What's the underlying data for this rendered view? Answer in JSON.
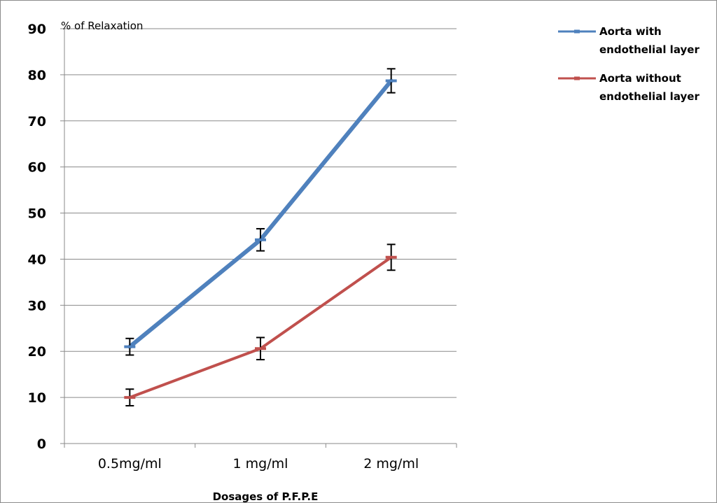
{
  "chart_data": {
    "type": "line",
    "title": "",
    "ylabel": "% of Relaxation",
    "xlabel": "Dosages of P.F.P.E",
    "categories": [
      "0.5mg/ml",
      "1 mg/ml",
      "2 mg/ml"
    ],
    "ylim": [
      0,
      90
    ],
    "yticks": [
      0,
      10,
      20,
      30,
      40,
      50,
      60,
      70,
      80,
      90
    ],
    "grid": "horizontal",
    "legend_position": "right",
    "series": [
      {
        "name_lines": [
          "Aorta with",
          "endothelial layer"
        ],
        "color": "#4f81bd",
        "values": [
          21,
          44.2,
          78.7
        ],
        "errors": [
          1.8,
          2.4,
          2.6
        ]
      },
      {
        "name_lines": [
          "Aorta without",
          "endothelial layer"
        ],
        "color": "#c0504d",
        "values": [
          10,
          20.6,
          40.4
        ],
        "errors": [
          1.8,
          2.4,
          2.8
        ]
      }
    ]
  }
}
